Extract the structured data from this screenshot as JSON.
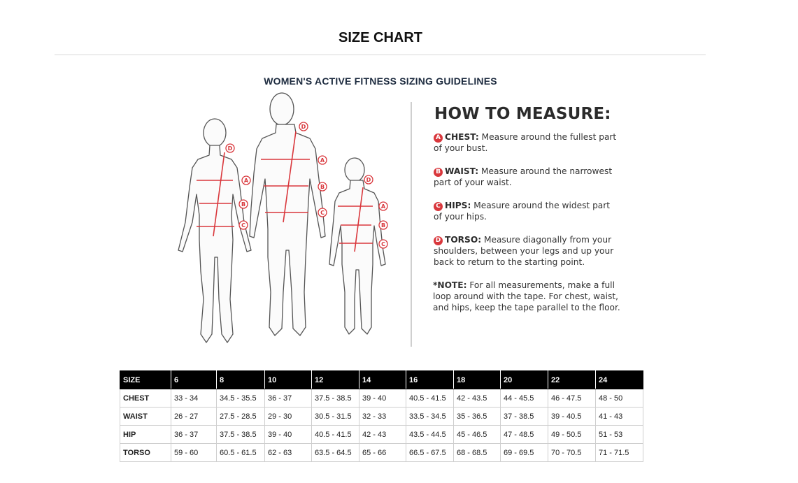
{
  "page": {
    "title": "SIZE CHART",
    "subtitle": "WOMEN'S ACTIVE FITNESS SIZING GUIDELINES"
  },
  "illustration": {
    "markers": [
      "A",
      "B",
      "C",
      "D"
    ]
  },
  "how_to": {
    "heading": "HOW TO MEASURE:",
    "items": [
      {
        "badge": "A",
        "label": "CHEST:",
        "text": "Measure around the fullest part of your bust."
      },
      {
        "badge": "B",
        "label": "WAIST:",
        "text": "Measure around the narrowest part of your waist."
      },
      {
        "badge": "C",
        "label": "HIPS:",
        "text": "Measure around the widest part of your hips."
      },
      {
        "badge": "D",
        "label": "TORSO:",
        "text": "Measure diagonally from your shoulders, between your legs and up your back to return to the starting point."
      }
    ],
    "note_label": "*NOTE:",
    "note_text": "For all measurements, make a full loop around with the tape. For chest, waist, and hips, keep the tape parallel to the floor."
  },
  "size_table": {
    "headers": [
      "SIZE",
      "6",
      "8",
      "10",
      "12",
      "14",
      "16",
      "18",
      "20",
      "22",
      "24"
    ],
    "rows": [
      [
        "CHEST",
        "33 - 34",
        "34.5 - 35.5",
        "36 - 37",
        "37.5 - 38.5",
        "39 - 40",
        "40.5 - 41.5",
        "42 - 43.5",
        "44 - 45.5",
        "46 - 47.5",
        "48 - 50"
      ],
      [
        "WAIST",
        "26 - 27",
        "27.5 - 28.5",
        "29 - 30",
        "30.5 - 31.5",
        "32 - 33",
        "33.5 - 34.5",
        "35 - 36.5",
        "37 - 38.5",
        "39 - 40.5",
        "41 - 43"
      ],
      [
        "HIP",
        "36 - 37",
        "37.5 - 38.5",
        "39 - 40",
        "40.5 - 41.5",
        "42 - 43",
        "43.5 - 44.5",
        "45 - 46.5",
        "47 - 48.5",
        "49 - 50.5",
        "51 - 53"
      ],
      [
        "TORSO",
        "59 - 60",
        "60.5 - 61.5",
        "62 - 63",
        "63.5 - 64.5",
        "65 - 66",
        "66.5 - 67.5",
        "68 - 68.5",
        "69 - 69.5",
        "70 - 70.5",
        "71 - 71.5"
      ]
    ]
  },
  "colors": {
    "marker_red": "#d9373c",
    "header_black": "#000000"
  }
}
